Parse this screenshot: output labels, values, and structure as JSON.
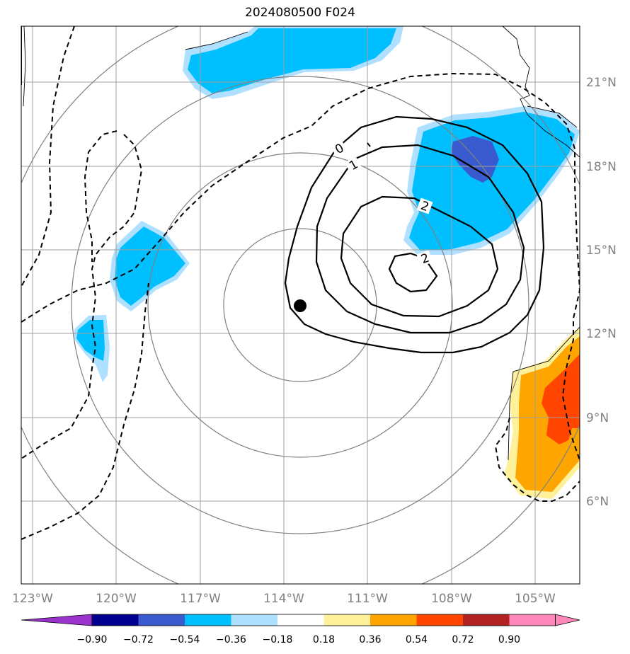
{
  "title": "2024080500 F024",
  "map": {
    "lat_labels": [
      "21°N",
      "18°N",
      "15°N",
      "12°N",
      "9°N",
      "6°N"
    ],
    "lon_labels": [
      "123°W",
      "120°W",
      "117°W",
      "114°W",
      "111°W",
      "108°W",
      "105°W"
    ],
    "storm_center": {
      "lon": "113.5°W",
      "lat": "13°N"
    },
    "range_rings": "concentric grey circles about storm center",
    "contour_labels": [
      "0",
      "1",
      "2",
      "2"
    ]
  },
  "colorbar": {
    "ticks": [
      "−0.90",
      "−0.72",
      "−0.54",
      "−0.36",
      "−0.18",
      "0.18",
      "0.36",
      "0.54",
      "0.72",
      "0.90"
    ],
    "colors": [
      "#9933cc",
      "#000090",
      "#3a5bd0",
      "#00bfff",
      "#b0e0ff",
      "#ffffff",
      "#fff09a",
      "#ffa500",
      "#ff4500",
      "#b22222",
      "#ff88bb"
    ]
  }
}
